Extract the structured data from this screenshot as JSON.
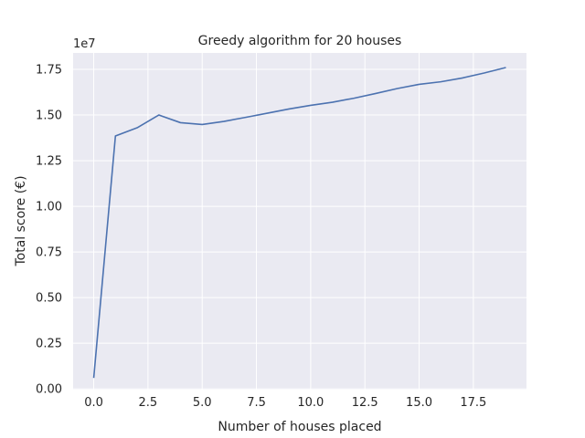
{
  "chart_data": {
    "type": "line",
    "title": "Greedy algorithm for 20 houses",
    "xlabel": "Number of houses placed",
    "ylabel": "Total score (€)",
    "y_offset_label": "1e7",
    "xlim": [
      -0.95,
      19.95
    ],
    "ylim": [
      -0.00396,
      1.84
    ],
    "xticks": [
      0.0,
      2.5,
      5.0,
      7.5,
      10.0,
      12.5,
      15.0,
      17.5
    ],
    "xtick_labels": [
      "0.0",
      "2.5",
      "5.0",
      "7.5",
      "10.0",
      "12.5",
      "15.0",
      "17.5"
    ],
    "yticks": [
      0.0,
      0.25,
      0.5,
      0.75,
      1.0,
      1.25,
      1.5,
      1.75
    ],
    "ytick_labels": [
      "0.00",
      "0.25",
      "0.50",
      "0.75",
      "1.00",
      "1.25",
      "1.50",
      "1.75"
    ],
    "grid": true,
    "series": [
      {
        "color": "#4c72b0",
        "x": [
          0,
          1,
          2,
          3,
          4,
          5,
          6,
          7,
          8,
          9,
          10,
          11,
          12,
          13,
          14,
          15,
          16,
          17,
          18,
          19
        ],
        "y": [
          0.06,
          1.385,
          1.43,
          1.5,
          1.458,
          1.448,
          1.465,
          1.487,
          1.51,
          1.533,
          1.553,
          1.57,
          1.592,
          1.618,
          1.645,
          1.668,
          1.682,
          1.703,
          1.73,
          1.76
        ]
      }
    ]
  }
}
